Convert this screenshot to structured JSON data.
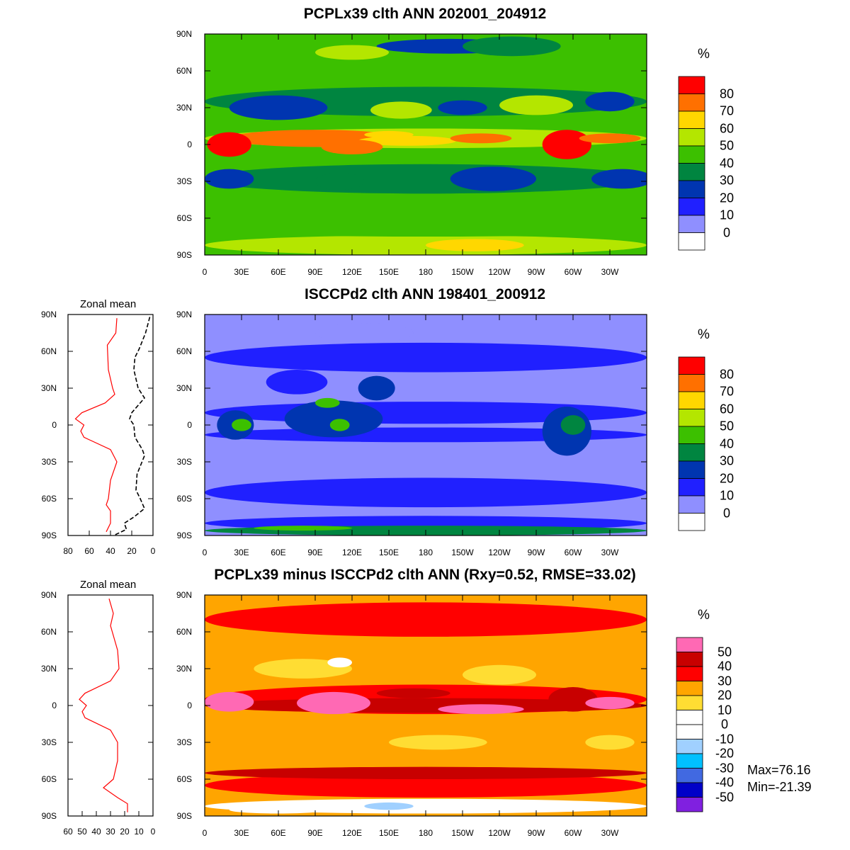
{
  "panels": [
    {
      "title": "PCPLx39 clth ANN 202001_204912",
      "unit": "%"
    },
    {
      "title": "ISCCPd2 clth ANN 198401_200912",
      "unit": "%",
      "zonal_title": "Zonal mean"
    },
    {
      "title": "PCPLx39 minus ISCCPd2 clth ANN (Rxy=0.52, RMSE=33.02)",
      "unit": "%",
      "zonal_title": "Zonal mean",
      "max_label": "Max=76.16",
      "min_label": "Min=-21.39"
    }
  ],
  "lat_labels": [
    "90N",
    "60N",
    "30N",
    "0",
    "30S",
    "60S",
    "90S"
  ],
  "lon_labels": [
    "0",
    "30E",
    "60E",
    "90E",
    "120E",
    "150E",
    "180",
    "150W",
    "120W",
    "90W",
    "60W",
    "30W"
  ],
  "zonal_x_labels_2": [
    "80",
    "60",
    "40",
    "20",
    "0"
  ],
  "zonal_x_labels_3": [
    "60",
    "50",
    "40",
    "30",
    "20",
    "10",
    "0"
  ],
  "colorbar_abs": {
    "labels": [
      "80",
      "70",
      "60",
      "50",
      "40",
      "30",
      "20",
      "10",
      "0"
    ],
    "colors": [
      "#ff0000",
      "#ff7000",
      "#ffd700",
      "#b4e600",
      "#3cc000",
      "#008540",
      "#0035b0",
      "#2020ff",
      "#8f8fff",
      "#ffffff"
    ]
  },
  "colorbar_diff": {
    "labels": [
      "50",
      "40",
      "30",
      "20",
      "10",
      "0",
      "-10",
      "-20",
      "-30",
      "-40",
      "-50"
    ],
    "colors": [
      "#ff69b4",
      "#c80000",
      "#ff0000",
      "#ffa500",
      "#ffdd33",
      "#ffffff",
      "#ffffff",
      "#a0d0ff",
      "#00c0ff",
      "#4169e1",
      "#0000c8",
      "#8020e0"
    ]
  },
  "chart_data": [
    {
      "type": "line",
      "title": "Zonal mean",
      "panel": 2,
      "xlim": [
        80,
        0
      ],
      "ylim": [
        -90,
        90
      ],
      "series": [
        {
          "name": "PCPLx39",
          "style": "red solid",
          "lat": [
            87,
            75,
            65,
            45,
            30,
            25,
            18,
            10,
            5,
            0,
            -5,
            -10,
            -20,
            -30,
            -45,
            -60,
            -65,
            -70,
            -80,
            -87
          ],
          "values": [
            34,
            35,
            43,
            42,
            38,
            36,
            45,
            67,
            73,
            65,
            68,
            65,
            40,
            34,
            40,
            42,
            44,
            40,
            40,
            44
          ]
        },
        {
          "name": "ISCCPd2",
          "style": "black dashed",
          "lat": [
            88,
            75,
            62,
            55,
            45,
            30,
            22,
            10,
            5,
            0,
            -10,
            -20,
            -25,
            -40,
            -53,
            -60,
            -68,
            -75,
            -80,
            -85,
            -90
          ],
          "values": [
            3,
            7,
            13,
            17,
            18,
            14,
            8,
            20,
            22,
            18,
            17,
            10,
            8,
            15,
            16,
            12,
            8,
            18,
            27,
            25,
            37
          ]
        }
      ]
    },
    {
      "type": "line",
      "title": "Zonal mean",
      "panel": 3,
      "xlim": [
        60,
        0
      ],
      "ylim": [
        -90,
        90
      ],
      "series": [
        {
          "name": "PCPLx39 minus ISCCPd2",
          "style": "red solid",
          "lat": [
            87,
            75,
            65,
            45,
            30,
            20,
            10,
            5,
            0,
            -5,
            -10,
            -20,
            -30,
            -45,
            -60,
            -67,
            -75,
            -80,
            -87
          ],
          "values": [
            31,
            28,
            30,
            25,
            24,
            30,
            48,
            52,
            47,
            50,
            48,
            30,
            25,
            25,
            28,
            35,
            25,
            18,
            18
          ]
        }
      ]
    }
  ]
}
